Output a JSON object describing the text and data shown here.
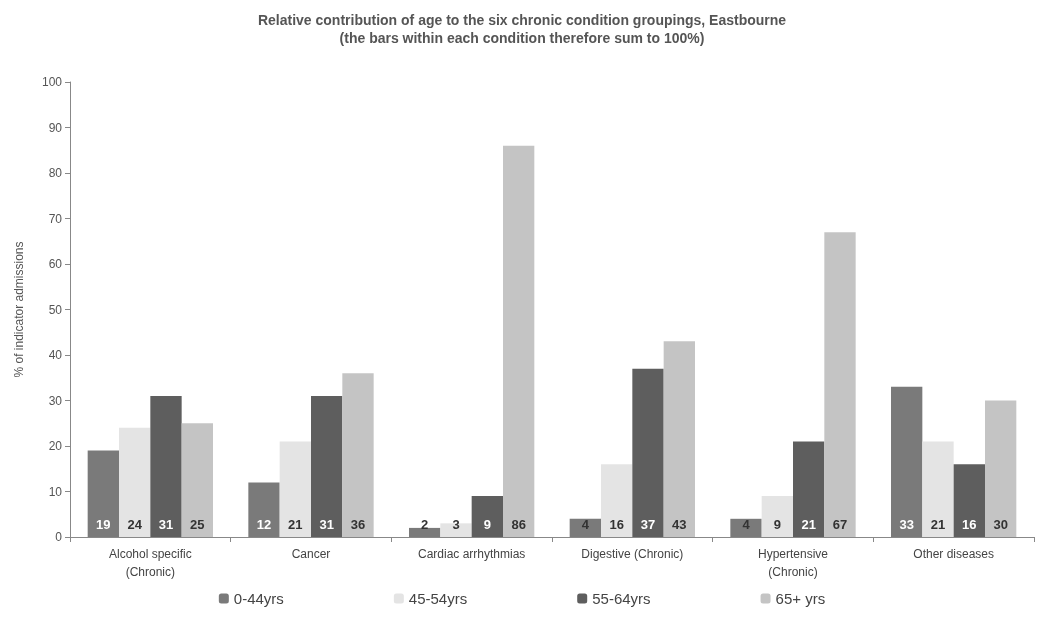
{
  "chart_data": {
    "type": "bar",
    "title": "Relative contribution of age to the six chronic condition groupings, Eastbourne",
    "subtitle": "(the bars within each condition therefore sum to 100%)",
    "ylabel": "% of indicator admissions",
    "categories": [
      "Alcohol specific\n(Chronic)",
      "Cancer",
      "Cardiac arrhythmias",
      "Digestive (Chronic)",
      "Hypertensive\n(Chronic)",
      "Other diseases"
    ],
    "series": [
      {
        "name": "0-44yrs",
        "color": "#7a7a7a",
        "values": [
          19,
          12,
          2,
          4,
          4,
          33
        ]
      },
      {
        "name": "45-54yrs",
        "color": "#e4e4e4",
        "values": [
          24,
          21,
          3,
          16,
          9,
          21
        ]
      },
      {
        "name": "55-64yrs",
        "color": "#5e5e5e",
        "values": [
          31,
          31,
          9,
          37,
          21,
          16
        ]
      },
      {
        "name": "65+ yrs",
        "color": "#c4c4c4",
        "values": [
          25,
          36,
          86,
          43,
          67,
          30
        ]
      }
    ],
    "ylim": [
      0,
      100
    ],
    "yticks": [
      0,
      10,
      20,
      30,
      40,
      50,
      60,
      70,
      80,
      90,
      100
    ],
    "grid": false,
    "legend": "bottom",
    "data_labels": true
  }
}
